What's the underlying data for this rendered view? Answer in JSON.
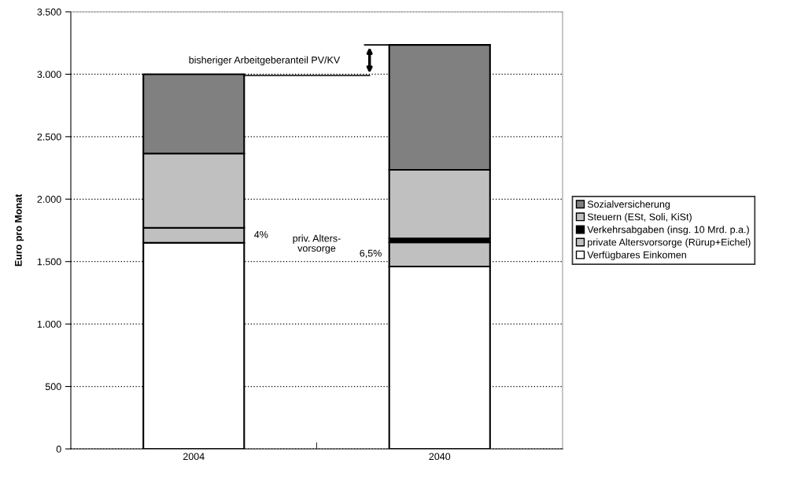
{
  "chart_data": {
    "type": "bar",
    "stacked": true,
    "ylabel": "Euro pro Monat",
    "categories": [
      "2004",
      "2040"
    ],
    "series": [
      {
        "name": "Verfügbares Einkomen",
        "color": "#ffffff",
        "values": [
          1650,
          1460
        ]
      },
      {
        "name": "private Altersvorsorge (Rürup+Eichel)",
        "color": "#c0c0c0",
        "values": [
          120,
          195
        ]
      },
      {
        "name": "Verkehrsabgaben (insg. 10 Mrd. p.a.)",
        "color": "#000000",
        "values": [
          null,
          30
        ]
      },
      {
        "name": "Steuern (ESt, Soli, KiSt)",
        "color": "#c0c0c0",
        "values": [
          595,
          550
        ]
      },
      {
        "name": "Sozialversicherung",
        "color": "#808080",
        "values": [
          635,
          1000
        ]
      }
    ],
    "ylim": [
      0,
      3500
    ],
    "yticks": [
      0,
      500,
      {
        "value": 1000,
        "label": "1.000"
      },
      {
        "value": 1500,
        "label": "1.500"
      },
      {
        "value": 2000,
        "label": "2.000"
      },
      {
        "value": 2500,
        "label": "2.500"
      },
      {
        "value": 3000,
        "label": "3.000"
      },
      {
        "value": 3500,
        "label": "3.500"
      }
    ],
    "grid": "y",
    "legend": "right",
    "annotations": [
      "bisheriger Arbeitgeberanteil PV/KV",
      "4%",
      "priv. Alters-\nvorsorge",
      "6,5%"
    ]
  }
}
